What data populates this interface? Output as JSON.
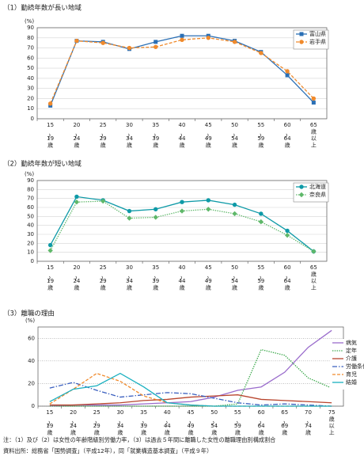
{
  "chart_data": [
    {
      "type": "line",
      "title": "（1）勤続年数が長い地域",
      "y_label": "(%)",
      "categories": [
        "15〜19歳",
        "20〜24歳",
        "25〜29歳",
        "30〜34歳",
        "35〜39歳",
        "40〜44歳",
        "45〜49歳",
        "50〜54歳",
        "55〜59歳",
        "60〜64歳",
        "65歳以上"
      ],
      "series": [
        {
          "name": "富山県",
          "color": "#2a6fb5",
          "line_style": "solid",
          "marker": "square",
          "values": [
            13,
            77,
            76,
            69,
            76,
            82,
            82,
            77,
            66,
            43,
            16
          ]
        },
        {
          "name": "岩手県",
          "color": "#f08a2c",
          "line_style": "dashed",
          "marker": "circle",
          "values": [
            15,
            77,
            75,
            70,
            71,
            78,
            80,
            76,
            65,
            47,
            20
          ]
        }
      ],
      "ylim": [
        0,
        90
      ],
      "yticks": [
        0,
        10,
        20,
        30,
        40,
        50,
        60,
        70,
        80,
        90
      ],
      "grid": "solid",
      "legend": "top-right"
    },
    {
      "type": "line",
      "title": "（2）勤続年数が短い地域",
      "y_label": "(%)",
      "categories": [
        "15〜19歳",
        "20〜24歳",
        "25〜29歳",
        "30〜34歳",
        "35〜39歳",
        "40〜44歳",
        "45〜49歳",
        "50〜54歳",
        "55〜59歳",
        "60〜64歳",
        "65歳以上"
      ],
      "series": [
        {
          "name": "北海道",
          "color": "#0e9aa7",
          "line_style": "solid",
          "marker": "circle",
          "values": [
            18,
            72,
            68,
            56,
            58,
            66,
            68,
            63,
            53,
            34,
            11
          ]
        },
        {
          "name": "奈良県",
          "color": "#5fb86a",
          "line_style": "dotted",
          "marker": "diamond",
          "values": [
            12,
            66,
            67,
            48,
            49,
            56,
            58,
            53,
            44,
            29,
            11
          ]
        }
      ],
      "ylim": [
        0,
        90
      ],
      "yticks": [
        0,
        10,
        20,
        30,
        40,
        50,
        60,
        70,
        80,
        90
      ],
      "grid": "solid",
      "legend": "top-right"
    },
    {
      "type": "line",
      "title": "（3）離職の理由",
      "y_label": "(%)",
      "categories": [
        "15〜19歳",
        "20〜24歳",
        "25〜29歳",
        "30〜34歳",
        "35〜39歳",
        "40〜44歳",
        "45〜49歳",
        "50〜54歳",
        "55〜59歳",
        "60〜64歳",
        "65〜69歳",
        "70〜74歳",
        "75歳以上"
      ],
      "series": [
        {
          "name": "病気",
          "color": "#9a6ccc",
          "line_style": "solid",
          "marker": "none",
          "values": [
            0,
            1,
            1,
            1,
            2,
            3,
            4,
            8,
            14,
            17,
            30,
            52,
            67
          ]
        },
        {
          "name": "定年",
          "color": "#3aa84a",
          "line_style": "dotted",
          "marker": "none",
          "values": [
            0,
            0,
            0,
            0,
            0,
            0,
            0,
            0,
            2,
            50,
            45,
            25,
            16
          ]
        },
        {
          "name": "介護",
          "color": "#b8452e",
          "line_style": "solid",
          "marker": "none",
          "values": [
            1,
            1,
            2,
            3,
            5,
            6,
            8,
            9,
            10,
            6,
            5,
            4,
            3
          ]
        },
        {
          "name": "労働条件",
          "color": "#3a5fbf",
          "line_style": "dashdot",
          "marker": "none",
          "values": [
            16,
            21,
            14,
            8,
            10,
            12,
            11,
            7,
            3,
            1,
            2,
            1,
            0
          ]
        },
        {
          "name": "育児",
          "color": "#f08a2c",
          "line_style": "dashed",
          "marker": "none",
          "values": [
            2,
            15,
            29,
            22,
            9,
            3,
            1,
            0,
            0,
            0,
            0,
            0,
            0
          ]
        },
        {
          "name": "結婚",
          "color": "#1ab0c0",
          "line_style": "solid",
          "marker": "none",
          "values": [
            4,
            15,
            18,
            29,
            17,
            3,
            1,
            0,
            0,
            0,
            0,
            0,
            0
          ]
        }
      ],
      "ylim": [
        0,
        70
      ],
      "yticks": [
        0,
        20,
        40,
        60
      ],
      "grid": "dotted",
      "legend": "right"
    }
  ],
  "notes": [
    "注：（1）及び（2）は女性の年齢階級別労働力率，（3）は過去５年間に離職した女性の離職理由別構成割合",
    "資料出所：総務省「国勢調査」（平成12年），同「就業構造基本調査」（平成９年）"
  ]
}
